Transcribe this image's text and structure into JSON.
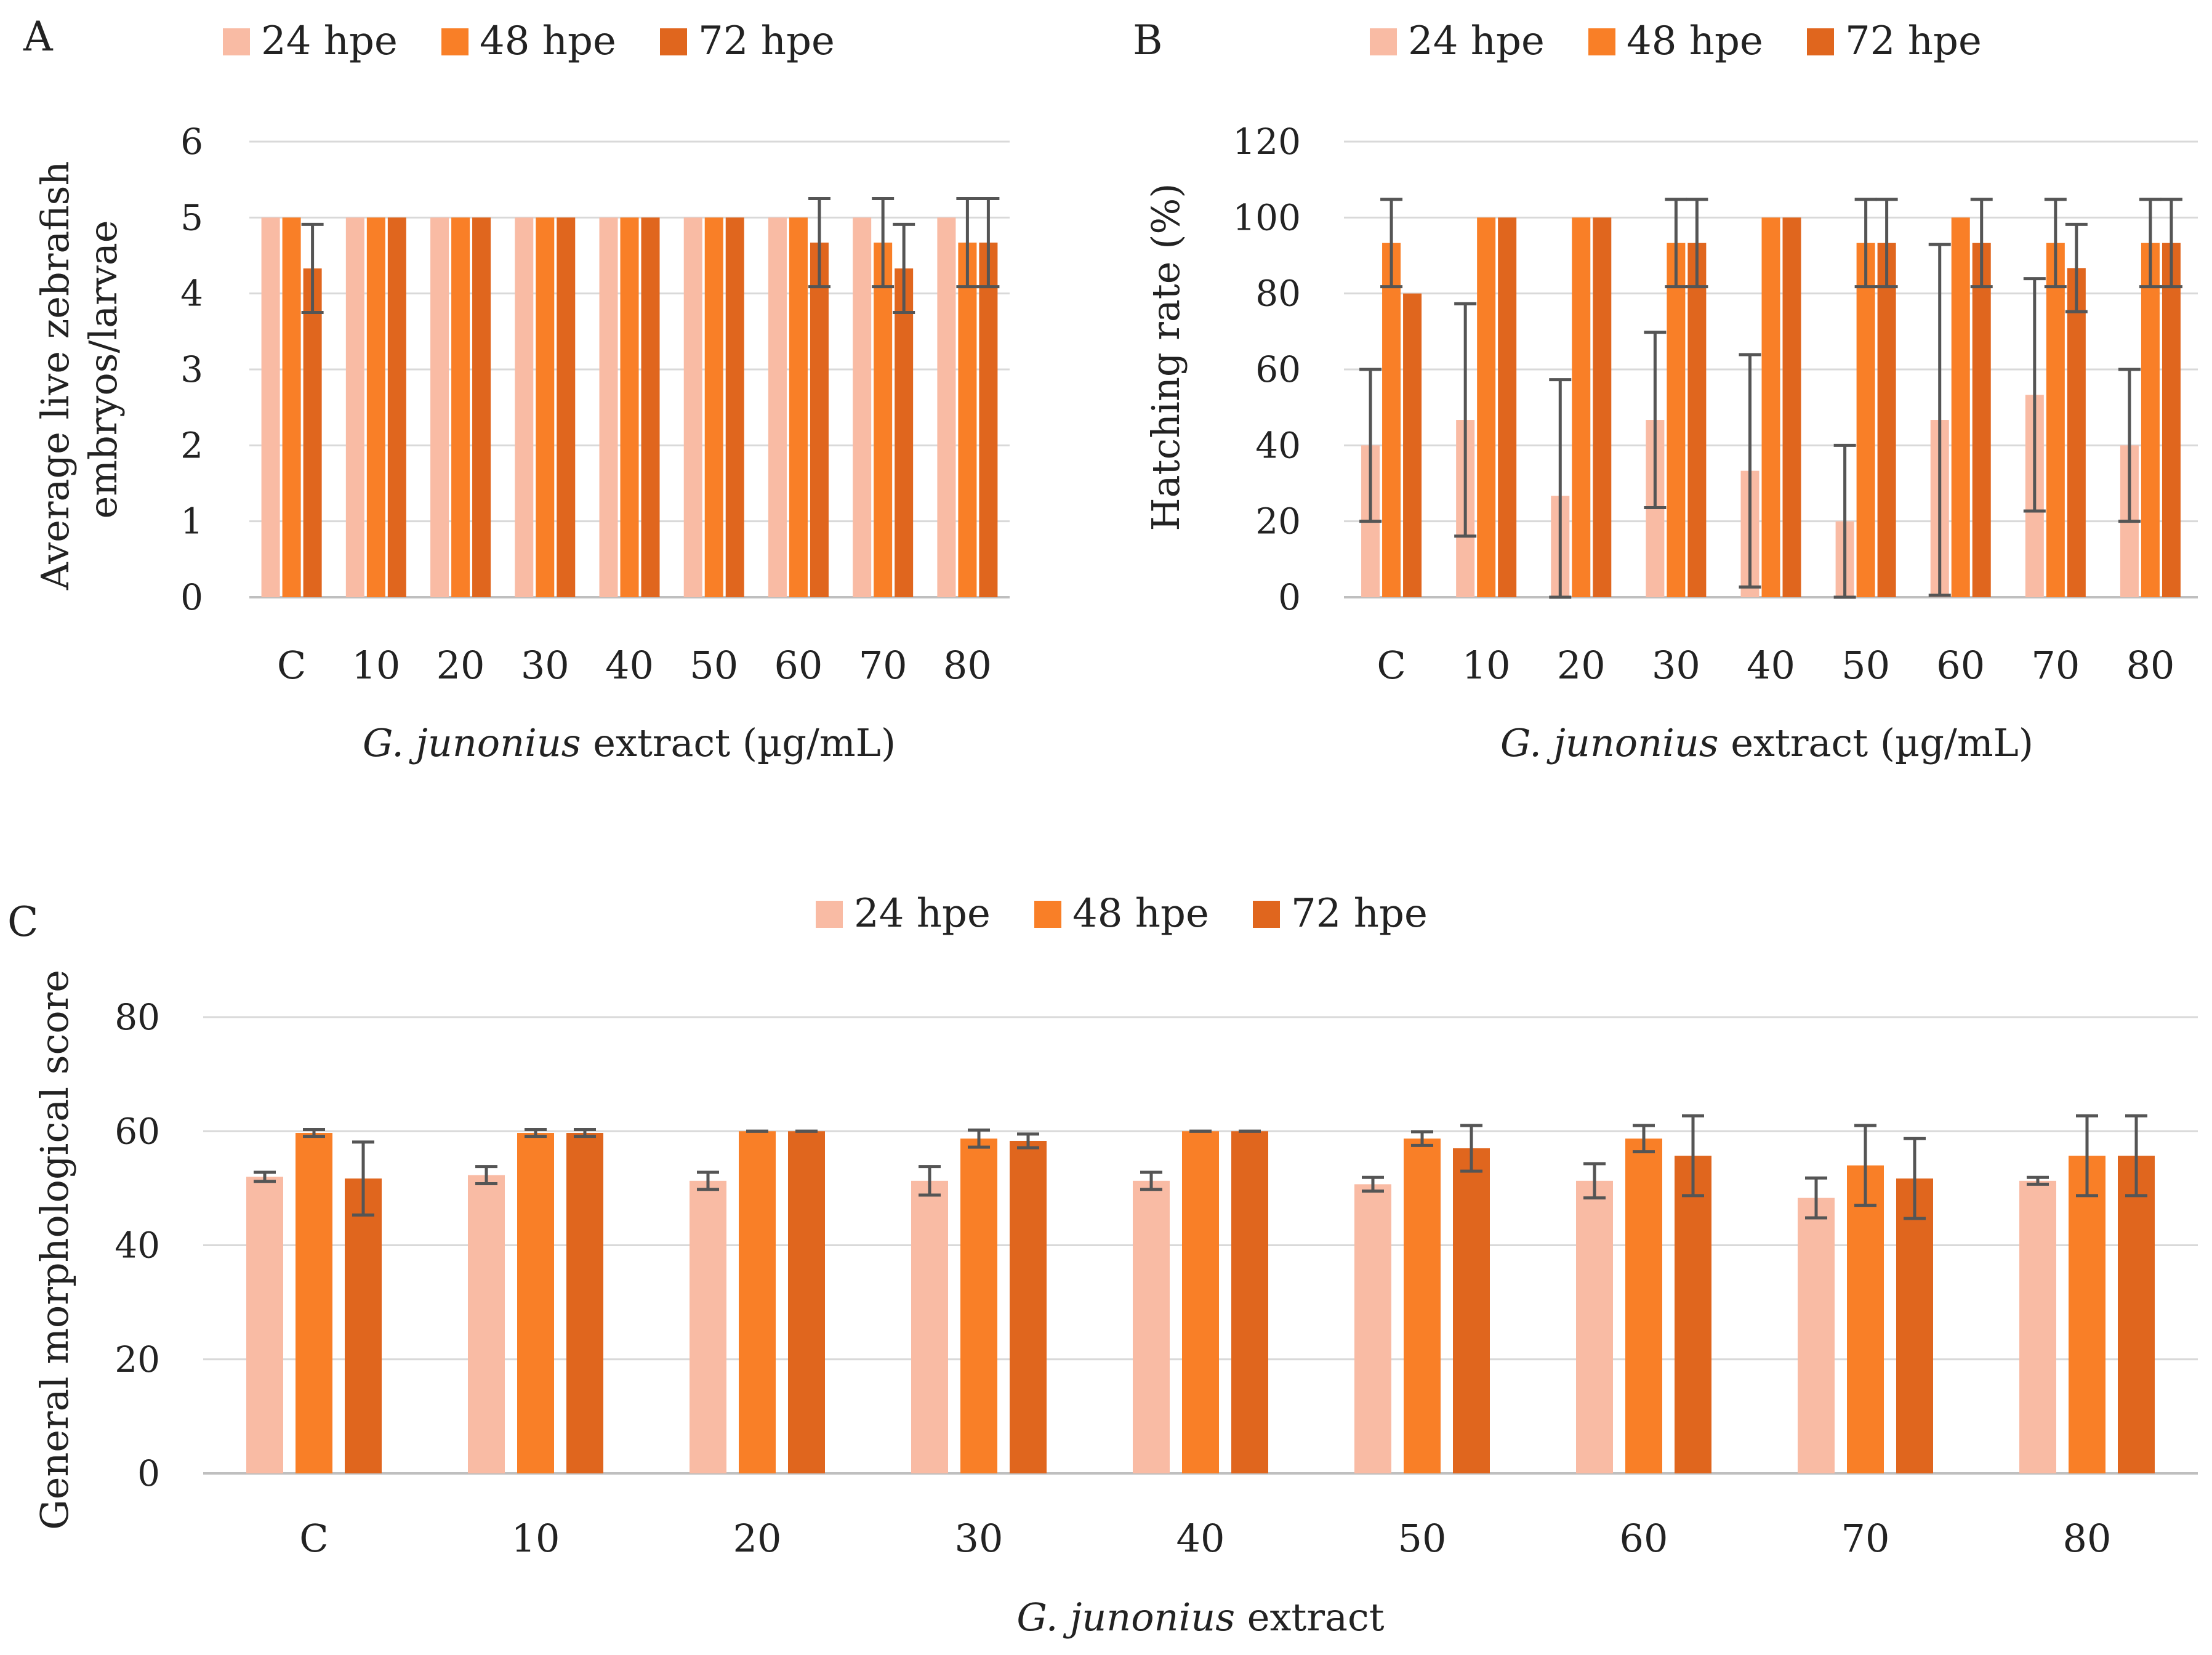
{
  "colors": {
    "s24": "#F9BBA4",
    "s48": "#F97F27",
    "s72": "#E0661E",
    "err": "#555555",
    "grid": "#D9D9D9",
    "axis": "#BFBFBF"
  },
  "chart_data": [
    {
      "panel": "A",
      "type": "bar",
      "xlabel_italic": "G. junonius",
      "xlabel_rest": " extract (µg/mL)",
      "ylabel_lines": [
        "Average live zebrafish",
        "embryos/larvae"
      ],
      "ylim": [
        0,
        6
      ],
      "ystep": 1,
      "legend_position": "top",
      "categories": [
        "C",
        "10",
        "20",
        "30",
        "40",
        "50",
        "60",
        "70",
        "80"
      ],
      "series": [
        {
          "name": "24 hpe",
          "values": [
            5,
            5,
            5,
            5,
            5,
            5,
            5,
            5,
            5
          ],
          "errors": [
            null,
            null,
            null,
            null,
            null,
            null,
            null,
            null,
            null
          ]
        },
        {
          "name": "48 hpe",
          "values": [
            5,
            5,
            5,
            5,
            5,
            5,
            5,
            4.67,
            4.67
          ],
          "errors": [
            null,
            null,
            null,
            null,
            null,
            null,
            null,
            0.58,
            0.58
          ]
        },
        {
          "name": "72 hpe",
          "values": [
            4.33,
            5,
            5,
            5,
            5,
            5,
            4.67,
            4.33,
            4.67
          ],
          "errors": [
            0.58,
            null,
            null,
            null,
            null,
            null,
            0.58,
            0.58,
            0.58
          ]
        }
      ]
    },
    {
      "panel": "B",
      "type": "bar",
      "xlabel_italic": "G. junonius",
      "xlabel_rest": " extract (µg/mL)",
      "ylabel_lines": [
        "Hatching rate (%)"
      ],
      "ylim": [
        0,
        120
      ],
      "ystep": 20,
      "legend_position": "top",
      "categories": [
        "C",
        "10",
        "20",
        "30",
        "40",
        "50",
        "60",
        "70",
        "80"
      ],
      "series": [
        {
          "name": "24 hpe",
          "values": [
            40,
            46.7,
            26.7,
            46.7,
            33.3,
            20,
            46.7,
            53.3,
            40
          ],
          "errors": [
            20,
            30.6,
            30.6,
            23.1,
            30.6,
            20,
            46.2,
            30.6,
            20
          ]
        },
        {
          "name": "48 hpe",
          "values": [
            93.3,
            100,
            100,
            93.3,
            100,
            93.3,
            100,
            93.3,
            93.3
          ],
          "errors": [
            11.5,
            null,
            null,
            11.5,
            null,
            11.5,
            null,
            11.5,
            11.5
          ]
        },
        {
          "name": "72 hpe",
          "values": [
            80,
            100,
            100,
            93.3,
            100,
            93.3,
            93.3,
            86.7,
            93.3
          ],
          "errors": [
            null,
            null,
            null,
            11.5,
            null,
            11.5,
            11.5,
            11.5,
            11.5
          ]
        }
      ]
    },
    {
      "panel": "C",
      "type": "bar",
      "xlabel_italic": "G. junonius",
      "xlabel_rest": " extract",
      "ylabel_lines": [
        "General morphological  score"
      ],
      "ylim": [
        0,
        80
      ],
      "ystep": 20,
      "legend_position": "top",
      "categories": [
        "C",
        "10",
        "20",
        "30",
        "40",
        "50",
        "60",
        "70",
        "80"
      ],
      "series": [
        {
          "name": "24 hpe",
          "values": [
            52,
            52.3,
            51.3,
            51.3,
            51.3,
            50.7,
            51.3,
            48.3,
            51.3
          ],
          "errors": [
            0.8,
            1.5,
            1.5,
            2.5,
            1.5,
            1.2,
            3,
            3.5,
            0.6
          ]
        },
        {
          "name": "48 hpe",
          "values": [
            59.7,
            59.7,
            60,
            58.7,
            60,
            58.7,
            58.7,
            54,
            55.7
          ],
          "errors": [
            0.6,
            0.6,
            0,
            1.5,
            0,
            1.2,
            2.3,
            7,
            7
          ]
        },
        {
          "name": "72 hpe",
          "values": [
            51.7,
            59.7,
            60,
            58.3,
            60,
            57,
            55.7,
            51.7,
            55.7
          ],
          "errors": [
            6.4,
            0.6,
            0,
            1.2,
            0,
            4,
            7,
            7,
            7
          ]
        }
      ]
    }
  ]
}
